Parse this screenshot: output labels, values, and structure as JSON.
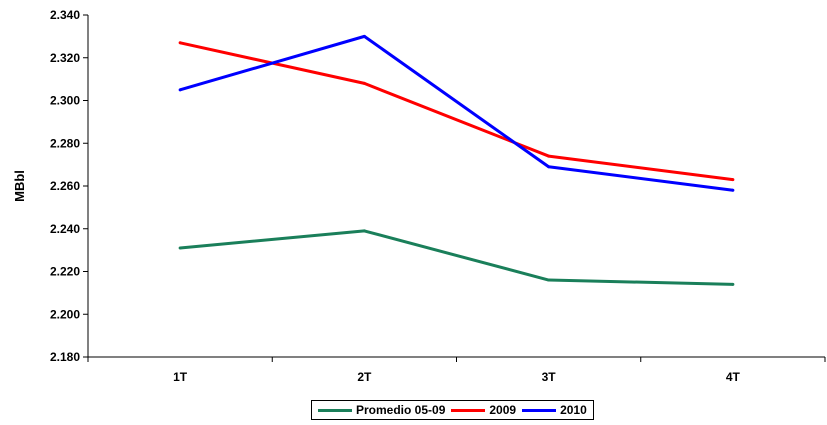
{
  "chart_data": {
    "type": "line",
    "title": "",
    "xlabel": "",
    "ylabel": "MBbl",
    "categories": [
      "1T",
      "2T",
      "3T",
      "4T"
    ],
    "ylim": [
      2.18,
      2.34
    ],
    "yticks": [
      "2.180",
      "2.200",
      "2.220",
      "2.240",
      "2.260",
      "2.280",
      "2.300",
      "2.320",
      "2.340"
    ],
    "grid": false,
    "legend_position": "bottom",
    "series": [
      {
        "name": "Promedio 05-09",
        "color": "#1a7f5a",
        "values": [
          2.231,
          2.239,
          2.216,
          2.214
        ]
      },
      {
        "name": "2009",
        "color": "#ff0000",
        "values": [
          2.327,
          2.308,
          2.274,
          2.263
        ]
      },
      {
        "name": "2010",
        "color": "#0000ff",
        "values": [
          2.305,
          2.33,
          2.269,
          2.258
        ]
      }
    ]
  }
}
